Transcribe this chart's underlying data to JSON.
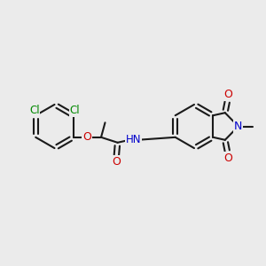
{
  "bg_color": "#ebebeb",
  "bond_color": "#1a1a1a",
  "bond_lw": 1.5,
  "font_size": 9,
  "atom_colors": {
    "C": "#1a1a1a",
    "N": "#0000cc",
    "O": "#cc0000",
    "Cl": "#008800",
    "H": "#555555"
  }
}
